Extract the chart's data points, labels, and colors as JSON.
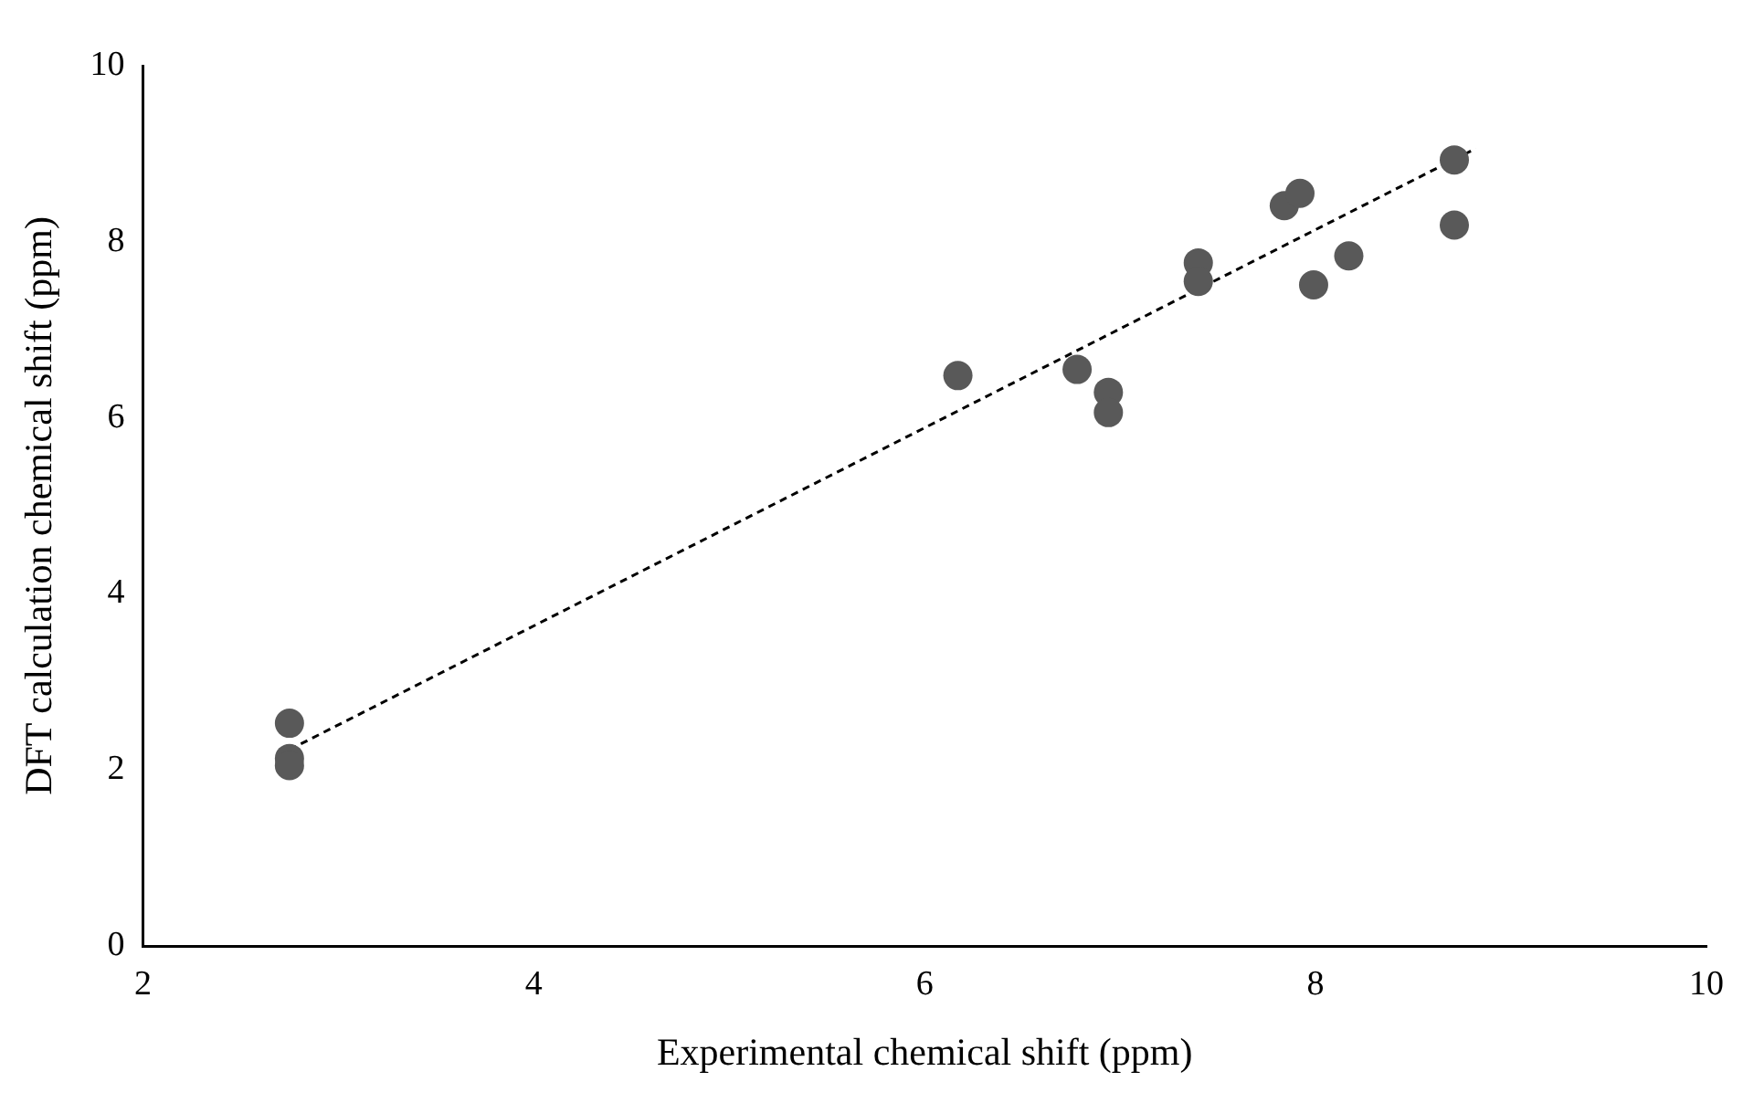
{
  "chart_data": {
    "type": "scatter",
    "xlabel": "Experimental chemical shift (ppm)",
    "ylabel": "DFT calculation chemical shift (ppm)",
    "xlim": [
      2,
      10
    ],
    "xticks": [
      2,
      4,
      6,
      8,
      10
    ],
    "ylim": [
      0,
      10
    ],
    "yticks": [
      0,
      2,
      4,
      6,
      8,
      10
    ],
    "grid": false,
    "legend": false,
    "marker": "circle",
    "series": [
      {
        "color": "#595959",
        "x": [
          2.75,
          2.75,
          2.75,
          6.17,
          6.78,
          6.94,
          6.94,
          7.4,
          7.4,
          7.84,
          7.92,
          7.99,
          8.17,
          8.71,
          8.71
        ],
        "values": [
          2.53,
          2.13,
          2.05,
          6.48,
          6.55,
          6.29,
          6.06,
          7.76,
          7.55,
          8.41,
          8.55,
          7.51,
          7.84,
          8.93,
          8.19
        ]
      },
      {
        "type": "line",
        "color": "#000000",
        "line_style": "dashed",
        "marker": "none",
        "x": [
          2.75,
          8.82
        ],
        "values": [
          2.23,
          9.06
        ]
      }
    ]
  }
}
